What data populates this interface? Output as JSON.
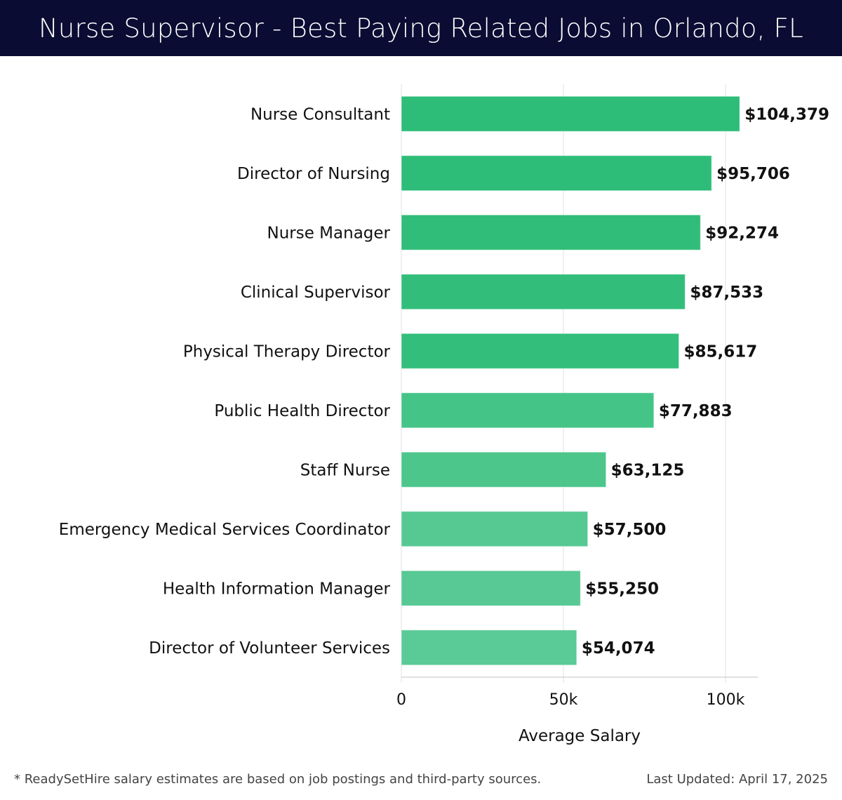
{
  "header": {
    "title": "Nurse Supervisor - Best Paying Related Jobs in Orlando, FL"
  },
  "chart_data": {
    "type": "bar",
    "orientation": "horizontal",
    "title": "Nurse Supervisor - Best Paying Related Jobs in Orlando, FL",
    "xlabel": "Average Salary",
    "ylabel": "",
    "xlim": [
      0,
      110000
    ],
    "grid": true,
    "xticks": [
      0,
      50000,
      100000
    ],
    "xtick_labels": [
      "0",
      "50k",
      "100k"
    ],
    "categories": [
      "Nurse Consultant",
      "Director of Nursing",
      "Nurse Manager",
      "Clinical Supervisor",
      "Physical Therapy Director",
      "Public Health Director",
      "Staff Nurse",
      "Emergency Medical Services Coordinator",
      "Health Information Manager",
      "Director of Volunteer Services"
    ],
    "values": [
      104379,
      95706,
      92274,
      87533,
      85617,
      77883,
      63125,
      57500,
      55250,
      54074
    ],
    "value_labels": [
      "$104,379",
      "$95,706",
      "$92,274",
      "$87,533",
      "$85,617",
      "$77,883",
      "$63,125",
      "$57,500",
      "$55,250",
      "$54,074"
    ],
    "colors": {
      "bar_strong": "#2ebd78",
      "bar_light": "#5aca96",
      "grid": "#e2e2e2"
    }
  },
  "footer": {
    "note": "* ReadySetHire salary estimates are based on job postings and third-party sources.",
    "updated": "Last Updated: April 17, 2025"
  }
}
